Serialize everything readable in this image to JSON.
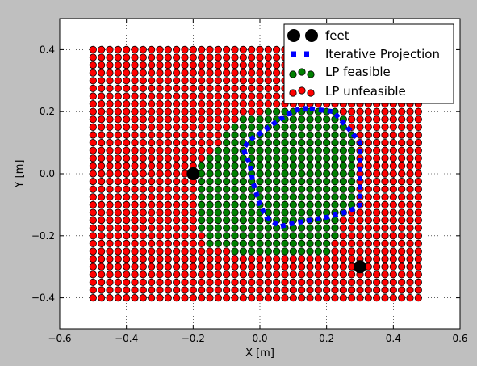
{
  "chart_data": {
    "type": "scatter",
    "xlabel": "X [m]",
    "ylabel": "Y [m]",
    "xlim": [
      -0.6,
      0.6
    ],
    "ylim": [
      -0.5,
      0.5
    ],
    "xticks": [
      -0.6,
      -0.4,
      -0.2,
      0.0,
      0.2,
      0.4,
      0.6
    ],
    "xtick_labels": [
      "−0.6",
      "−0.4",
      "−0.2",
      "0.0",
      "0.2",
      "0.4",
      "0.6"
    ],
    "yticks": [
      0.4,
      0.2,
      0.0,
      -0.2,
      -0.4
    ],
    "ytick_labels": [
      "0.4",
      "0.2",
      "0.0",
      "−0.2",
      "−0.4"
    ],
    "grid": true,
    "legend_position": "top-right",
    "grid_points": {
      "x_start": -0.5,
      "x_step": 0.025,
      "x_count": 40,
      "y_start": -0.4,
      "y_step": 0.025,
      "y_count": 33
    },
    "series": [
      {
        "name": "feet",
        "marker": "circle",
        "color": "#000000",
        "points": [
          [
            -0.2,
            0.0
          ],
          [
            0.3,
            -0.3
          ]
        ]
      },
      {
        "name": "Iterative Projection",
        "marker": "dashed-line",
        "color": "#0000ff",
        "points": [
          [
            0.15,
            0.21
          ],
          [
            0.22,
            0.2
          ],
          [
            0.27,
            0.14
          ],
          [
            0.3,
            0.1
          ],
          [
            0.3,
            0.0
          ],
          [
            0.3,
            -0.1
          ],
          [
            0.27,
            -0.12
          ],
          [
            0.2,
            -0.14
          ],
          [
            0.1,
            -0.16
          ],
          [
            0.06,
            -0.17
          ],
          [
            0.02,
            -0.14
          ],
          [
            0.0,
            -0.1
          ],
          [
            -0.02,
            -0.03
          ],
          [
            -0.03,
            0.03
          ],
          [
            -0.05,
            0.08
          ],
          [
            -0.03,
            0.11
          ],
          [
            0.0,
            0.13
          ],
          [
            0.04,
            0.16
          ],
          [
            0.08,
            0.19
          ],
          [
            0.12,
            0.21
          ],
          [
            0.15,
            0.21
          ]
        ]
      },
      {
        "name": "LP feasible",
        "marker": "circle",
        "color": "#008000",
        "row_ranges": [
          {
            "y": 0.2,
            "x_from": 0.025,
            "x_to": 0.225
          },
          {
            "y": 0.175,
            "x_from": -0.05,
            "x_to": 0.25
          },
          {
            "y": 0.15,
            "x_from": -0.075,
            "x_to": 0.25
          },
          {
            "y": 0.125,
            "x_from": -0.1,
            "x_to": 0.275
          },
          {
            "y": 0.1,
            "x_from": -0.1,
            "x_to": 0.275
          },
          {
            "y": 0.075,
            "x_from": -0.125,
            "x_to": 0.275
          },
          {
            "y": 0.05,
            "x_from": -0.15,
            "x_to": 0.275
          },
          {
            "y": 0.025,
            "x_from": -0.175,
            "x_to": 0.275
          },
          {
            "y": 0.0,
            "x_from": -0.175,
            "x_to": 0.275
          },
          {
            "y": -0.025,
            "x_from": -0.175,
            "x_to": 0.275
          },
          {
            "y": -0.05,
            "x_from": -0.175,
            "x_to": 0.275
          },
          {
            "y": -0.075,
            "x_from": -0.175,
            "x_to": 0.275
          },
          {
            "y": -0.1,
            "x_from": -0.175,
            "x_to": 0.275
          },
          {
            "y": -0.125,
            "x_from": -0.175,
            "x_to": 0.25
          },
          {
            "y": -0.15,
            "x_from": -0.175,
            "x_to": 0.225
          },
          {
            "y": -0.175,
            "x_from": -0.175,
            "x_to": 0.225
          },
          {
            "y": -0.2,
            "x_from": -0.15,
            "x_to": 0.225
          },
          {
            "y": -0.225,
            "x_from": -0.15,
            "x_to": 0.2
          },
          {
            "y": -0.25,
            "x_from": -0.075,
            "x_to": 0.2
          }
        ]
      },
      {
        "name": "LP unfeasible",
        "marker": "circle",
        "color": "#ff0000",
        "points_rule": "all grid points not in LP feasible"
      }
    ]
  }
}
